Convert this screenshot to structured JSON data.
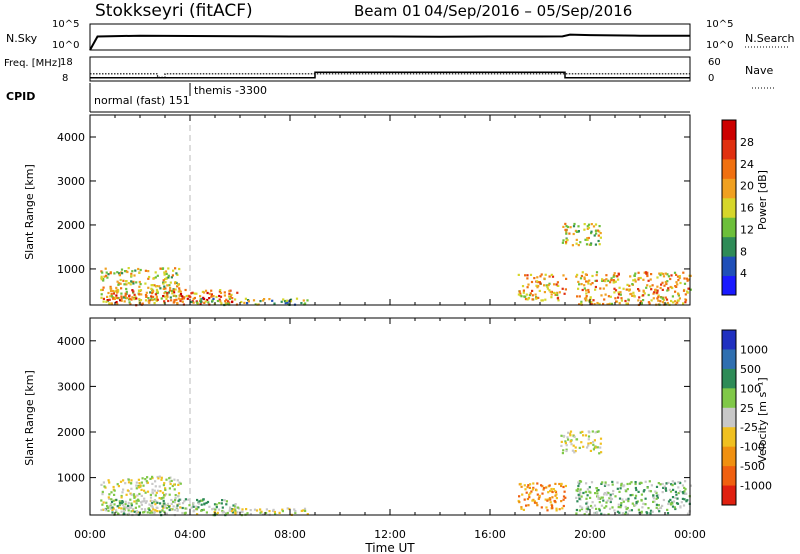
{
  "header": {
    "station": "Stokkseyri (fitACF)",
    "beam": "Beam 01",
    "date_range": "04/Sep/2016 – 05/Sep/2016"
  },
  "colors": {
    "axis": "#000000",
    "gridline": "#bbbbbb",
    "power_scale": [
      "#1a1aff",
      "#1f4fb8",
      "#2e8b57",
      "#6cbf3a",
      "#d6d62a",
      "#f0a020",
      "#f07010",
      "#e03010",
      "#cc0000"
    ],
    "velocity_scale": [
      "#2030c0",
      "#2f6fb0",
      "#2e8b57",
      "#80c848",
      "#c8c8c8",
      "#f0c020",
      "#f09010",
      "#f06010",
      "#e02010"
    ]
  },
  "chart_data": [
    {
      "type": "line",
      "panel": "sky-search-noise",
      "left_label": "N.Sky",
      "right_label": "N.Search",
      "left_ticks": [
        "10^5",
        "10^0"
      ],
      "right_ticks": [
        "10^5",
        "10^0"
      ],
      "series": [
        {
          "name": "N.Sky",
          "x": [
            0,
            0.3,
            2,
            4,
            6,
            8,
            10,
            12,
            14,
            16,
            18,
            18.9,
            19.2,
            20,
            22,
            24
          ],
          "y": [
            0,
            2.6,
            2.75,
            2.7,
            2.65,
            2.6,
            2.6,
            2.6,
            2.55,
            2.6,
            2.6,
            2.62,
            2.95,
            2.85,
            2.75,
            2.75
          ]
        },
        {
          "name": "N.Search",
          "x": [
            0,
            24
          ],
          "y": [
            0,
            0
          ]
        }
      ]
    },
    {
      "type": "line",
      "panel": "frequency-nave",
      "left_label": "Freq. [MHz]",
      "left_ticks": [
        "18",
        "8"
      ],
      "right_label": "Nave",
      "right_ticks": [
        "60",
        "0"
      ],
      "series": [
        {
          "name": "Freq.",
          "x": [
            0,
            2.7,
            2.7,
            3.0,
            3.0,
            24
          ],
          "y": [
            11,
            11,
            9.5,
            9.5,
            11,
            11
          ]
        },
        {
          "name": "Nave",
          "x": [
            0,
            9,
            9,
            19,
            19,
            24
          ],
          "y": [
            8,
            8,
            22,
            22,
            8,
            8
          ]
        }
      ]
    },
    {
      "type": "table",
      "panel": "cpid",
      "label": "CPID",
      "entries": [
        {
          "text": "normal (fast) 151",
          "start_hour": 0
        },
        {
          "text": "themis -3300",
          "start_hour": 4
        }
      ]
    },
    {
      "type": "heatmap",
      "panel": "power",
      "ylabel": "Slant Range [km]",
      "yticks": [
        1000,
        2000,
        3000,
        4000
      ],
      "ylim": [
        180,
        4500
      ],
      "xlim": [
        0,
        24
      ],
      "colorbar": {
        "label": "Power [dB]",
        "ticks": [
          4,
          8,
          12,
          16,
          20,
          24,
          28
        ],
        "range": [
          0,
          32
        ]
      },
      "echo_regions": [
        {
          "x": [
            0.4,
            3.6
          ],
          "range": [
            250,
            1050
          ],
          "level": 14
        },
        {
          "x": [
            0.4,
            6.0
          ],
          "range": [
            200,
            550
          ],
          "level": 24
        },
        {
          "x": [
            4.0,
            8.8
          ],
          "range": [
            200,
            350
          ],
          "level": 10
        },
        {
          "x": [
            17.1,
            19.0
          ],
          "range": [
            300,
            900
          ],
          "level": 20
        },
        {
          "x": [
            18.8,
            20.4
          ],
          "range": [
            1550,
            2050
          ],
          "level": 14
        },
        {
          "x": [
            19.4,
            24.0
          ],
          "range": [
            200,
            950
          ],
          "level": 20
        }
      ]
    },
    {
      "type": "heatmap",
      "panel": "velocity",
      "ylabel": "Slant Range [km]",
      "yticks": [
        1000,
        2000,
        3000,
        4000
      ],
      "ylim": [
        180,
        4500
      ],
      "xlim": [
        0,
        24
      ],
      "xticks": [
        "00:00",
        "04:00",
        "08:00",
        "12:00",
        "16:00",
        "20:00",
        "00:00"
      ],
      "xlabel": "Time UT",
      "colorbar": {
        "label": "Velocity [m s⁻¹]",
        "ticks": [
          "1000",
          "500",
          "100",
          "25",
          "-25",
          "-100",
          "-500",
          "-1000"
        ]
      },
      "echo_regions": [
        {
          "x": [
            0.4,
            3.6
          ],
          "range": [
            250,
            1050
          ],
          "velocity": 25
        },
        {
          "x": [
            0.4,
            6.0
          ],
          "range": [
            200,
            550
          ],
          "velocity": 60
        },
        {
          "x": [
            4.0,
            8.8
          ],
          "range": [
            200,
            350
          ],
          "velocity": 10
        },
        {
          "x": [
            17.1,
            19.0
          ],
          "range": [
            300,
            900
          ],
          "velocity": -200
        },
        {
          "x": [
            18.8,
            20.4
          ],
          "range": [
            1550,
            2050
          ],
          "velocity": 0
        },
        {
          "x": [
            19.4,
            24.0
          ],
          "range": [
            200,
            950
          ],
          "velocity": 40
        }
      ]
    }
  ]
}
